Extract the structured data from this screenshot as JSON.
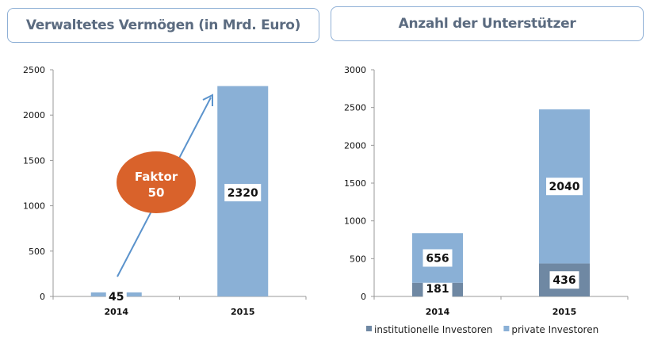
{
  "chart_data": [
    {
      "type": "bar",
      "title": "Verwaltetes Vermögen (in Mrd. Euro)",
      "categories": [
        "2014",
        "2015"
      ],
      "values": [
        45,
        2320
      ],
      "data_labels": [
        "45",
        "2320"
      ],
      "ylim": [
        0,
        2500
      ],
      "yticks": [
        0,
        500,
        1000,
        1500,
        2000,
        2500
      ],
      "grid": false,
      "color": "#8ab0d6",
      "annotation": {
        "text_line1": "Faktor",
        "text_line2": "50",
        "color": "#d9622b"
      }
    },
    {
      "type": "bar",
      "stacked": true,
      "title": "Anzahl der Unterstützer",
      "categories": [
        "2014",
        "2015"
      ],
      "ylim": [
        0,
        3000
      ],
      "yticks": [
        0,
        500,
        1000,
        1500,
        2000,
        2500,
        3000
      ],
      "grid": false,
      "legend": "bottom",
      "series": [
        {
          "name": "institutionelle Investoren",
          "values": [
            181,
            436
          ],
          "color": "#6f88a3"
        },
        {
          "name": "private Investoren",
          "values": [
            656,
            2040
          ],
          "color": "#8ab0d6"
        }
      ]
    }
  ]
}
